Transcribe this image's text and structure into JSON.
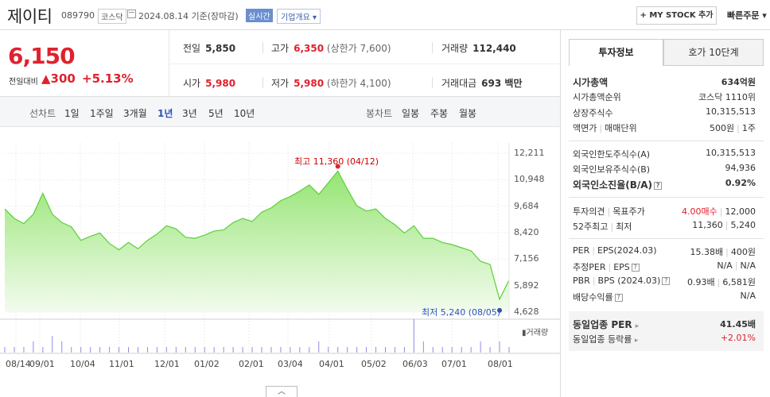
{
  "header": {
    "name": "제이티",
    "code": "089790",
    "market": "코스닥",
    "date": "2024.08.14 기준(장마감)",
    "realtime": "실시간",
    "corp_info": "기업개요 ▾",
    "mystock": "+ MY STOCK 추가",
    "quick_order": "빠른주문 ▾"
  },
  "quote": {
    "price": "6,150",
    "compare_label": "전일대비",
    "change": "▲300",
    "change_pct": "+5.13%",
    "prev_label": "전일",
    "prev": "5,850",
    "high_label": "고가",
    "high": "6,350",
    "upper_limit": "(상한가 7,600)",
    "volume_label": "거래량",
    "volume": "112,440",
    "open_label": "시가",
    "open": "5,980",
    "low_label": "저가",
    "low": "5,980",
    "lower_limit": "(하한가 4,100)",
    "amount_label": "거래대금",
    "amount": "693 백만"
  },
  "period_bar": {
    "line_label": "선차트",
    "line_options": [
      "1일",
      "1주일",
      "3개월",
      "1년",
      "3년",
      "5년",
      "10년"
    ],
    "selected": "1년",
    "candle_label": "봉차트",
    "candle_options": [
      "일봉",
      "주봉",
      "월봉"
    ]
  },
  "chart_data": {
    "type": "area",
    "x": [
      "08/14",
      "08/21",
      "08/28",
      "09/04",
      "09/11",
      "09/18",
      "09/25",
      "10/02",
      "10/09",
      "10/16",
      "10/23",
      "10/30",
      "11/06",
      "11/13",
      "11/20",
      "11/27",
      "12/04",
      "12/11",
      "12/18",
      "12/25",
      "01/01",
      "01/08",
      "01/15",
      "01/22",
      "01/29",
      "02/05",
      "02/12",
      "02/19",
      "02/26",
      "03/04",
      "03/11",
      "03/18",
      "03/25",
      "04/01",
      "04/08",
      "04/12",
      "04/15",
      "04/22",
      "04/29",
      "05/06",
      "05/13",
      "05/20",
      "05/27",
      "06/03",
      "06/10",
      "06/17",
      "06/24",
      "07/01",
      "07/08",
      "07/15",
      "07/22",
      "07/29",
      "08/05",
      "08/14"
    ],
    "values": [
      9550,
      9100,
      8850,
      9300,
      10300,
      9300,
      8900,
      8700,
      8050,
      8250,
      8400,
      7900,
      7600,
      7950,
      7650,
      8050,
      8350,
      8750,
      8600,
      8200,
      8150,
      8300,
      8500,
      8550,
      8900,
      9100,
      8950,
      9400,
      9600,
      9950,
      10150,
      10400,
      10700,
      10250,
      10800,
      11360,
      10500,
      9700,
      9450,
      9550,
      9100,
      8800,
      8400,
      8750,
      8150,
      8150,
      7950,
      7850,
      7700,
      7550,
      7050,
      6900,
      5240,
      6150
    ],
    "yticks": [
      "12,211",
      "10,948",
      "9,684",
      "8,420",
      "7,156",
      "5,892",
      "4,628"
    ],
    "ylim": [
      4628,
      12211
    ],
    "xticks": [
      "08/14",
      "09/01",
      "10/04",
      "11/01",
      "12/01",
      "01/02",
      "02/01",
      "03/04",
      "04/01",
      "05/02",
      "06/03",
      "07/01",
      "08/01"
    ],
    "high_annotation": "최고 11,360 (04/12)",
    "low_annotation": "최저 5,240 (08/05)",
    "volume_legend": "거래량",
    "volume": [
      1,
      1,
      1,
      2,
      1,
      3,
      2,
      1,
      1,
      1,
      1,
      1,
      1,
      1,
      1,
      1,
      1,
      1,
      1,
      1,
      1,
      1,
      1,
      1,
      1,
      1,
      1,
      1,
      1,
      1,
      1,
      1,
      1,
      2,
      1,
      1,
      1,
      1,
      1,
      1,
      1,
      1,
      1,
      6,
      2,
      1,
      1,
      1,
      1,
      1,
      2,
      1,
      2,
      1
    ],
    "grid": true,
    "color": "#5bcf3a"
  },
  "collapse_label": "︿",
  "right_panel": {
    "tab_invest": "투자정보",
    "tab_hoga": "호가 10단계",
    "market_cap_label": "시가총액",
    "market_cap": "634억원",
    "rank_label": "시가총액순위",
    "rank": "코스닥 1110위",
    "shares_label": "상장주식수",
    "shares": "10,315,513",
    "face_label": "액면가",
    "unit_label": "매매단위",
    "face": "500원",
    "unit": "1주",
    "foreign_limit_label": "외국인한도주식수(A)",
    "foreign_limit": "10,315,513",
    "foreign_hold_label": "외국인보유주식수(B)",
    "foreign_hold": "94,936",
    "foreign_ratio_label": "외국인소진율(B/A)",
    "foreign_ratio": "0.92%",
    "opinion_label": "투자의견",
    "target_label": "목표주가",
    "opinion": "4.00매수",
    "target": "12,000",
    "hl52_label_a": "52주최고",
    "hl52_label_b": "최저",
    "high52": "11,360",
    "low52": "5,240",
    "per_label": "PER",
    "eps_label": "EPS(2024.03)",
    "per": "15.38배",
    "eps": "400원",
    "est_per_label": "추정PER",
    "est_eps_label": "EPS",
    "est_per": "N/A",
    "est_eps": "N/A",
    "pbr_label": "PBR",
    "bps_label": "BPS (2024.03)",
    "pbr": "0.93배",
    "bps": "6,581원",
    "div_label": "배당수익률",
    "div": "N/A",
    "sector_per_label": "동일업종 PER",
    "sector_per": "41.45배",
    "sector_chg_label": "동일업종 등락률",
    "sector_chg": "+2.01%"
  }
}
